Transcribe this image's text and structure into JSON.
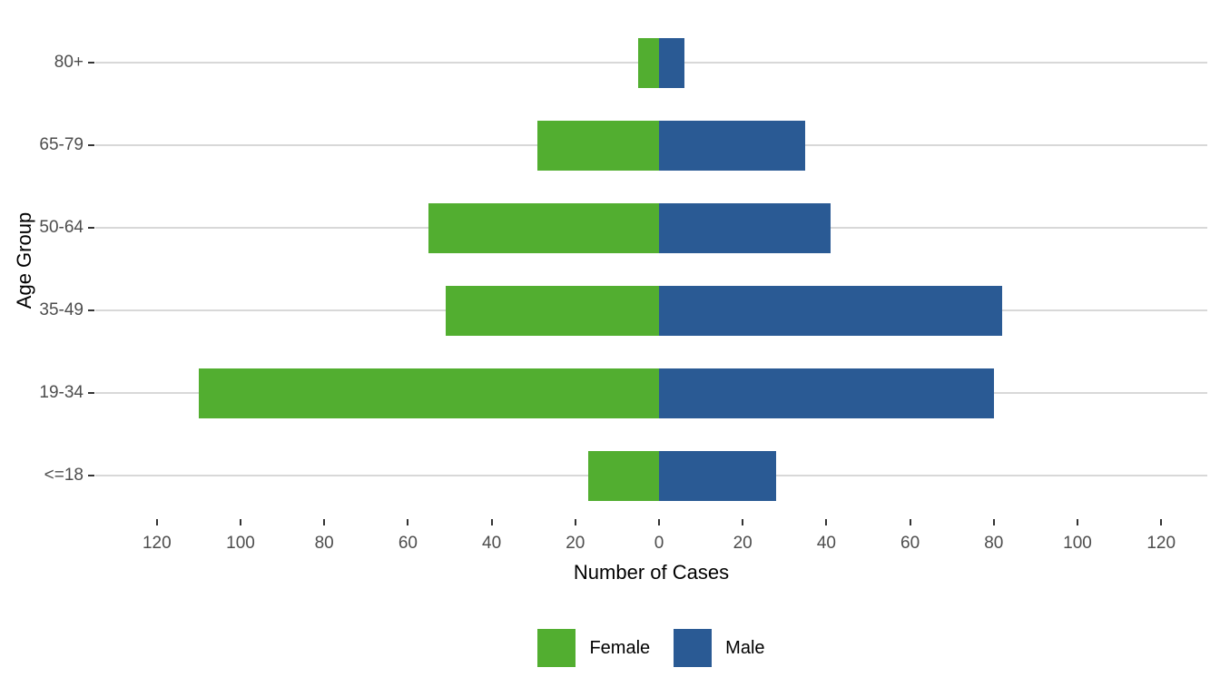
{
  "chart_data": {
    "type": "bar",
    "subtype": "population_pyramid_diverging",
    "orientation": "horizontal",
    "title": "",
    "xlabel": "Number of Cases",
    "ylabel": "Age Group",
    "categories_top_to_bottom": [
      "80+",
      "65-79",
      "50-64",
      "35-49",
      "19-34",
      "<=18"
    ],
    "series": [
      {
        "name": "Female",
        "color": "#52AE30",
        "direction": "left",
        "values": [
          5,
          29,
          55,
          51,
          110,
          17
        ]
      },
      {
        "name": "Male",
        "color": "#2A5A94",
        "direction": "right",
        "values": [
          6,
          35,
          41,
          82,
          80,
          28
        ]
      }
    ],
    "x_tick_values": [
      -120,
      -100,
      -80,
      -60,
      -40,
      -20,
      0,
      20,
      40,
      60,
      80,
      100,
      120
    ],
    "x_tick_labels": [
      "120",
      "100",
      "80",
      "60",
      "40",
      "20",
      "0",
      "20",
      "40",
      "60",
      "80",
      "100",
      "120"
    ],
    "xlim": [
      -134,
      131
    ],
    "grid": "horizontal-major-only",
    "grid_color": "#D8D8D8",
    "axis_text_color": "#4D4D4D",
    "background": "#FFFFFF",
    "legend_position": "bottom-center"
  },
  "legend": {
    "items": [
      {
        "label": "Female",
        "color": "#52AE30"
      },
      {
        "label": "Male",
        "color": "#2A5A94"
      }
    ]
  }
}
